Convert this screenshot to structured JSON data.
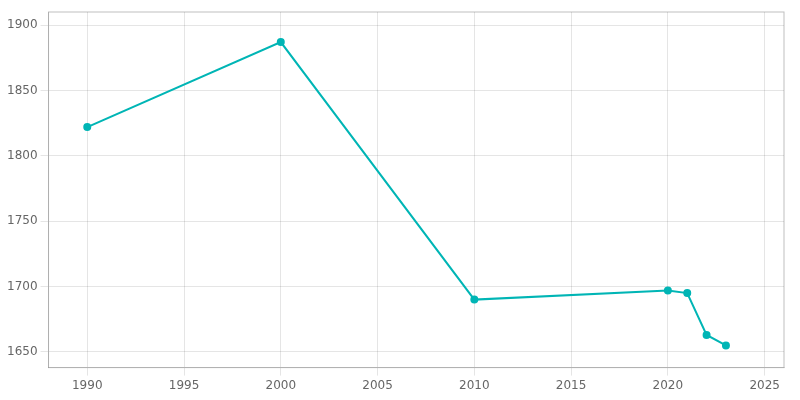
{
  "chart_data": {
    "type": "line",
    "x": [
      1990,
      2000,
      2010,
      2020,
      2021,
      2022,
      2023
    ],
    "values": [
      1822,
      1887,
      1690,
      1697,
      1695,
      1663,
      1655
    ],
    "color": "#00b5b5",
    "marker": "circle",
    "line_style": "solid",
    "xlim": [
      1988,
      2026
    ],
    "ylim": [
      1638,
      1910
    ],
    "xticks": [
      1990,
      1995,
      2000,
      2005,
      2010,
      2015,
      2020,
      2025
    ],
    "yticks": [
      1650,
      1700,
      1750,
      1800,
      1850,
      1900
    ],
    "grid": true
  }
}
